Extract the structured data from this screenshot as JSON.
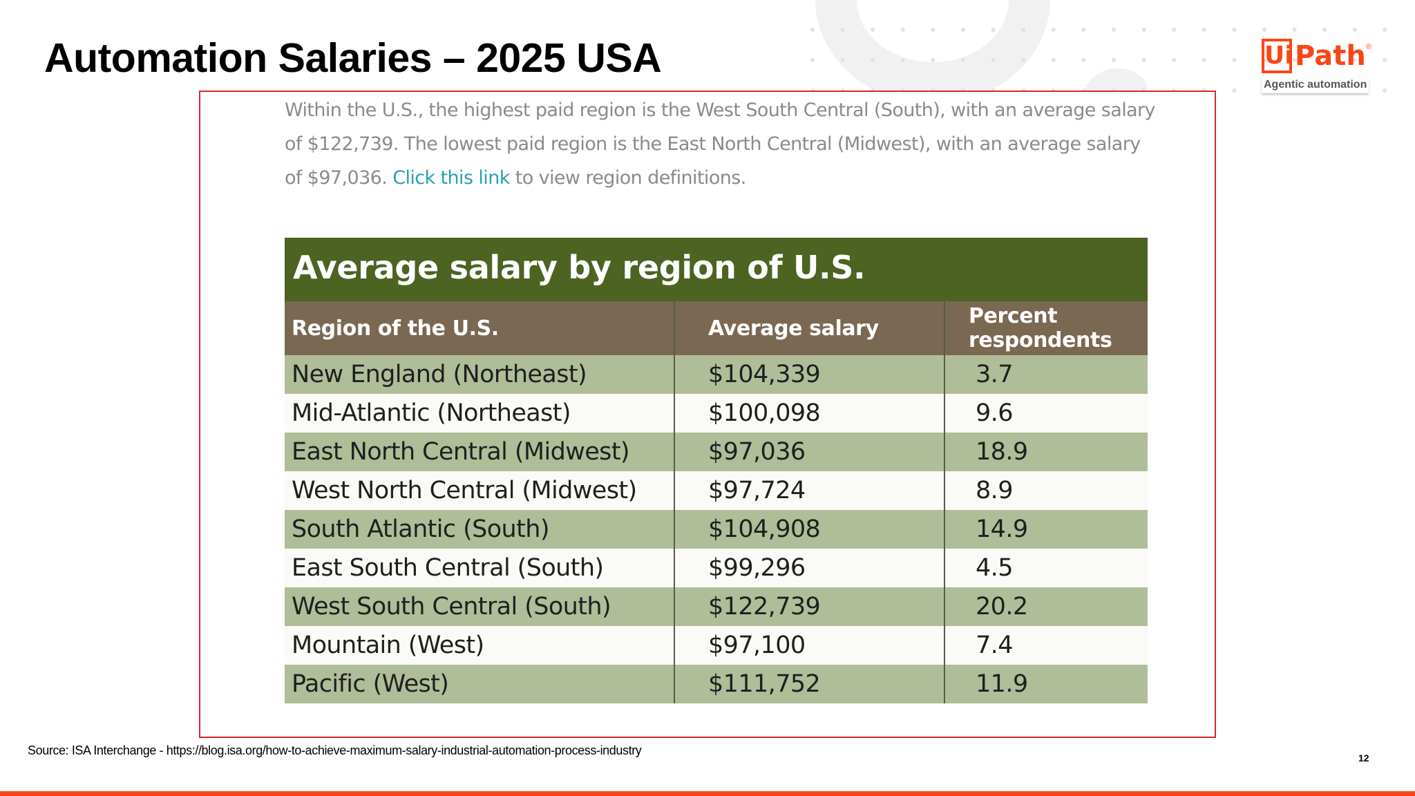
{
  "slide": {
    "title": "Automation Salaries – 2025 USA",
    "page_number": "12",
    "source": "Source: ISA Interchange - https://blog.isa.org/how-to-achieve-maximum-salary-industrial-automation-process-industry"
  },
  "logo": {
    "ui_text": "Ui",
    "path_text": "Path",
    "registered": "®",
    "tagline": "Agentic automation"
  },
  "colors": {
    "brand_orange": "#fa4616",
    "frame_red": "#d9262b",
    "table_title_green": "#4c6322",
    "header_brown": "#7a6852",
    "row_green": "#afbd98",
    "link_teal": "#2a9fb2"
  },
  "intro": {
    "text_before_link": "Within the U.S., the highest paid region is the West South Central (South), with an average salary of $122,739. The lowest paid region is the East North Central (Midwest), with an average salary of $97,036. ",
    "link_text": "Click this link",
    "text_after_link": " to view region definitions."
  },
  "table": {
    "title": "Average salary by region of U.S.",
    "headers": [
      "Region of the U.S.",
      "Average salary",
      "Percent respondents"
    ],
    "rows": [
      [
        "New England (Northeast)",
        "$104,339",
        "3.7"
      ],
      [
        "Mid-Atlantic (Northeast)",
        "$100,098",
        "9.6"
      ],
      [
        "East North Central (Midwest)",
        "$97,036",
        "18.9"
      ],
      [
        "West North Central (Midwest)",
        "$97,724",
        "8.9"
      ],
      [
        "South Atlantic (South)",
        "$104,908",
        "14.9"
      ],
      [
        "East South Central (South)",
        "$99,296",
        "4.5"
      ],
      [
        "West South Central (South)",
        "$122,739",
        "20.2"
      ],
      [
        "Mountain (West)",
        "$97,100",
        "7.4"
      ],
      [
        "Pacific (West)",
        "$111,752",
        "11.9"
      ]
    ]
  }
}
